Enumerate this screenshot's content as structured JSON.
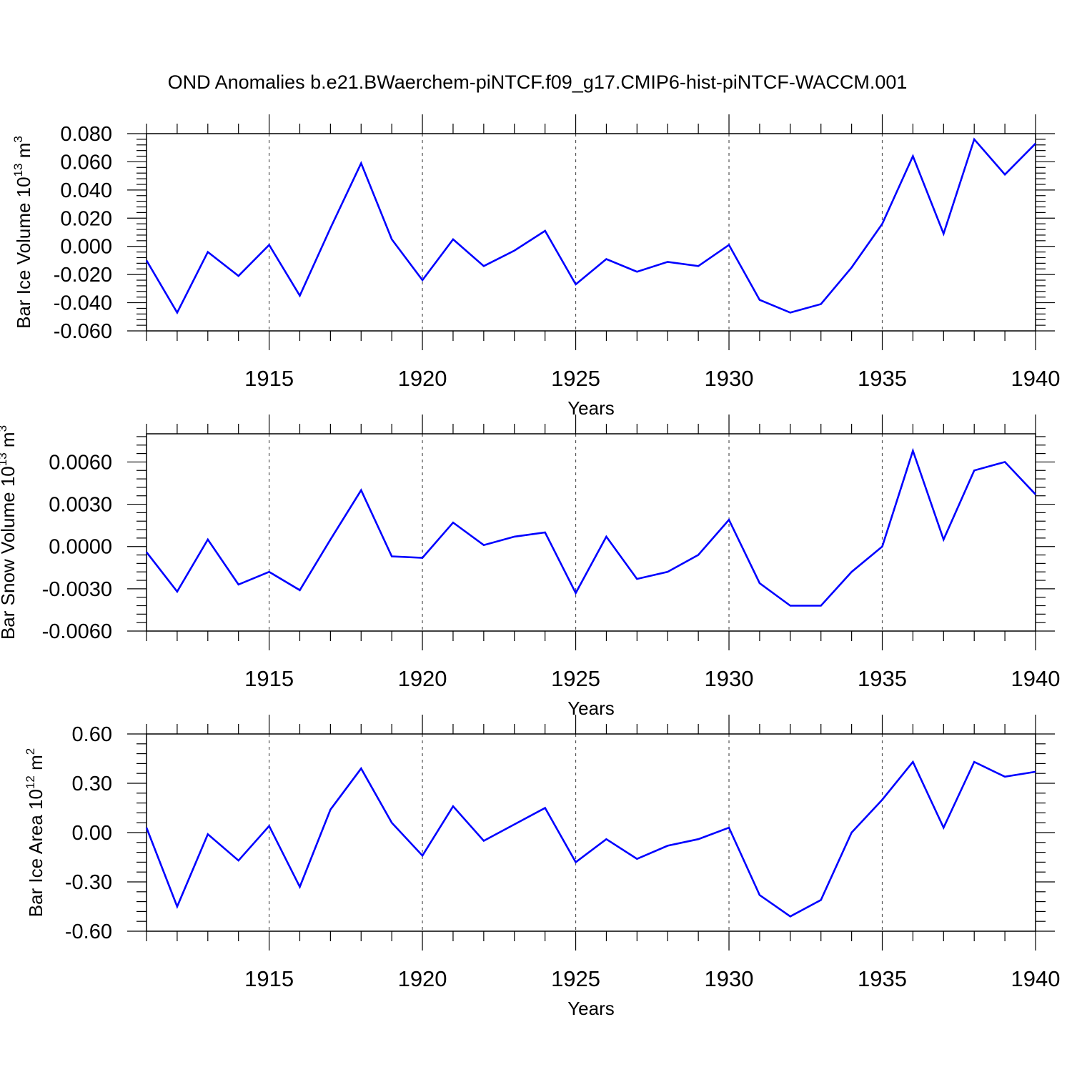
{
  "title": "OND Anomalies b.e21.BWaerchem-piNTCF.f09_g17.CMIP6-hist-piNTCF-WACCM.001",
  "colors": {
    "line": "#0000ff",
    "axis": "#000000",
    "grid": "#555555"
  },
  "chart_data": [
    {
      "type": "line",
      "ylabel": {
        "main": "Bar Ice Volume 10",
        "exp": "13",
        "unit": " m",
        "unit_exp": "3"
      },
      "xlabel": "Years",
      "xlim": [
        1911,
        1940
      ],
      "ylim": [
        -0.06,
        0.08
      ],
      "yticks": [
        -0.06,
        -0.04,
        -0.02,
        0.0,
        0.02,
        0.04,
        0.06,
        0.08
      ],
      "yticklabels": [
        "-0.060",
        "-0.040",
        "-0.020",
        "0.000",
        "0.020",
        "0.040",
        "0.060",
        "0.080"
      ],
      "xticks": [
        1915,
        1920,
        1925,
        1930,
        1935,
        1940
      ],
      "xticklabels": [
        "1915",
        "1920",
        "1925",
        "1930",
        "1935",
        "1940"
      ],
      "grid": "vertical dashed at major x ticks",
      "x": [
        1911,
        1912,
        1913,
        1914,
        1915,
        1916,
        1917,
        1918,
        1919,
        1920,
        1921,
        1922,
        1923,
        1924,
        1925,
        1926,
        1927,
        1928,
        1929,
        1930,
        1931,
        1932,
        1933,
        1934,
        1935,
        1936,
        1937,
        1938,
        1939,
        1940
      ],
      "values": [
        -0.01,
        -0.047,
        -0.004,
        -0.021,
        0.001,
        -0.035,
        0.013,
        0.059,
        0.005,
        -0.024,
        0.005,
        -0.014,
        -0.003,
        0.011,
        -0.027,
        -0.009,
        -0.018,
        -0.011,
        -0.014,
        0.001,
        -0.038,
        -0.047,
        -0.041,
        -0.015,
        0.016,
        0.064,
        0.009,
        0.076,
        0.051,
        0.073
      ]
    },
    {
      "type": "line",
      "ylabel": {
        "main": "Bar Snow Volume 10",
        "exp": "13",
        "unit": " m",
        "unit_exp": "3"
      },
      "xlabel": "Years",
      "xlim": [
        1911,
        1940
      ],
      "ylim": [
        -0.006,
        0.008
      ],
      "yticks": [
        -0.006,
        -0.003,
        0.0,
        0.003,
        0.006
      ],
      "yticklabels": [
        "-0.0060",
        "-0.0030",
        "0.0000",
        "0.0030",
        "0.0060"
      ],
      "xticks": [
        1915,
        1920,
        1925,
        1930,
        1935,
        1940
      ],
      "xticklabels": [
        "1915",
        "1920",
        "1925",
        "1930",
        "1935",
        "1940"
      ],
      "grid": "vertical dashed at major x ticks",
      "x": [
        1911,
        1912,
        1913,
        1914,
        1915,
        1916,
        1917,
        1918,
        1919,
        1920,
        1921,
        1922,
        1923,
        1924,
        1925,
        1926,
        1927,
        1928,
        1929,
        1930,
        1931,
        1932,
        1933,
        1934,
        1935,
        1936,
        1937,
        1938,
        1939,
        1940
      ],
      "values": [
        -0.0004,
        -0.0032,
        0.0005,
        -0.0027,
        -0.0018,
        -0.0031,
        0.0005,
        0.004,
        -0.0007,
        -0.0008,
        0.0017,
        0.0001,
        0.0007,
        0.001,
        -0.0033,
        0.0007,
        -0.0023,
        -0.0018,
        -0.0006,
        0.0019,
        -0.0026,
        -0.0042,
        -0.0042,
        -0.0018,
        0.0,
        0.0068,
        0.0005,
        0.0054,
        0.006,
        0.0037
      ]
    },
    {
      "type": "line",
      "ylabel": {
        "main": "Bar Ice Area 10",
        "exp": "12",
        "unit": " m",
        "unit_exp": "2"
      },
      "xlabel": "Years",
      "xlim": [
        1911,
        1940
      ],
      "ylim": [
        -0.6,
        0.6
      ],
      "yticks": [
        -0.6,
        -0.3,
        0.0,
        0.3,
        0.6
      ],
      "yticklabels": [
        "-0.60",
        "-0.30",
        "0.00",
        "0.30",
        "0.60"
      ],
      "xticks": [
        1915,
        1920,
        1925,
        1930,
        1935,
        1940
      ],
      "xticklabels": [
        "1915",
        "1920",
        "1925",
        "1930",
        "1935",
        "1940"
      ],
      "grid": "vertical dashed at major x ticks",
      "x": [
        1911,
        1912,
        1913,
        1914,
        1915,
        1916,
        1917,
        1918,
        1919,
        1920,
        1921,
        1922,
        1923,
        1924,
        1925,
        1926,
        1927,
        1928,
        1929,
        1930,
        1931,
        1932,
        1933,
        1934,
        1935,
        1936,
        1937,
        1938,
        1939,
        1940
      ],
      "values": [
        0.03,
        -0.45,
        -0.01,
        -0.17,
        0.04,
        -0.33,
        0.14,
        0.39,
        0.06,
        -0.14,
        0.16,
        -0.05,
        0.05,
        0.15,
        -0.18,
        -0.04,
        -0.16,
        -0.08,
        -0.04,
        0.03,
        -0.38,
        -0.51,
        -0.41,
        0.0,
        0.2,
        0.43,
        0.03,
        0.43,
        0.34,
        0.37
      ]
    }
  ]
}
